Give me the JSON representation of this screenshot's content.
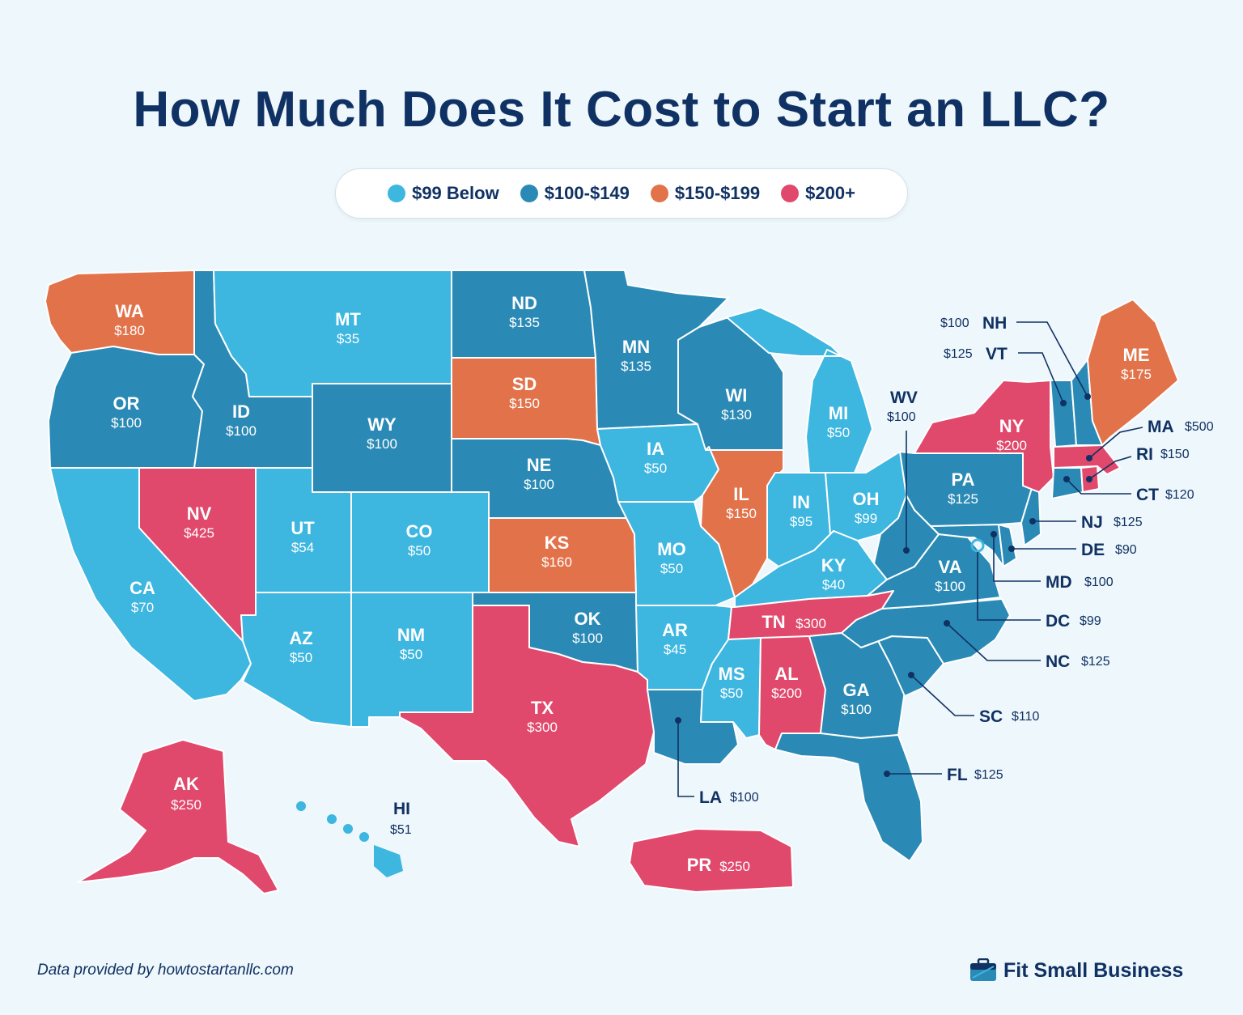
{
  "title": "How Much Does It Cost to Start an LLC?",
  "legend": [
    {
      "label": "$99 Below",
      "color": "#3db6e0"
    },
    {
      "label": "$100-$149",
      "color": "#2a8ab5"
    },
    {
      "label": "$150-$199",
      "color": "#e2724a"
    },
    {
      "label": "$200+",
      "color": "#e0486c"
    }
  ],
  "states": {
    "WA": {
      "abbr": "WA",
      "cost": "$180"
    },
    "OR": {
      "abbr": "OR",
      "cost": "$100"
    },
    "CA": {
      "abbr": "CA",
      "cost": "$70"
    },
    "NV": {
      "abbr": "NV",
      "cost": "$425"
    },
    "ID": {
      "abbr": "ID",
      "cost": "$100"
    },
    "MT": {
      "abbr": "MT",
      "cost": "$35"
    },
    "WY": {
      "abbr": "WY",
      "cost": "$100"
    },
    "UT": {
      "abbr": "UT",
      "cost": "$54"
    },
    "AZ": {
      "abbr": "AZ",
      "cost": "$50"
    },
    "CO": {
      "abbr": "CO",
      "cost": "$50"
    },
    "NM": {
      "abbr": "NM",
      "cost": "$50"
    },
    "ND": {
      "abbr": "ND",
      "cost": "$135"
    },
    "SD": {
      "abbr": "SD",
      "cost": "$150"
    },
    "NE": {
      "abbr": "NE",
      "cost": "$100"
    },
    "KS": {
      "abbr": "KS",
      "cost": "$160"
    },
    "OK": {
      "abbr": "OK",
      "cost": "$100"
    },
    "TX": {
      "abbr": "TX",
      "cost": "$300"
    },
    "MN": {
      "abbr": "MN",
      "cost": "$135"
    },
    "IA": {
      "abbr": "IA",
      "cost": "$50"
    },
    "MO": {
      "abbr": "MO",
      "cost": "$50"
    },
    "AR": {
      "abbr": "AR",
      "cost": "$45"
    },
    "LA": {
      "abbr": "LA",
      "cost": "$100"
    },
    "WI": {
      "abbr": "WI",
      "cost": "$130"
    },
    "IL": {
      "abbr": "IL",
      "cost": "$150"
    },
    "MI": {
      "abbr": "MI",
      "cost": "$50"
    },
    "IN": {
      "abbr": "IN",
      "cost": "$95"
    },
    "OH": {
      "abbr": "OH",
      "cost": "$99"
    },
    "KY": {
      "abbr": "KY",
      "cost": "$40"
    },
    "TN": {
      "abbr": "TN",
      "cost": "$300"
    },
    "MS": {
      "abbr": "MS",
      "cost": "$50"
    },
    "AL": {
      "abbr": "AL",
      "cost": "$200"
    },
    "GA": {
      "abbr": "GA",
      "cost": "$100"
    },
    "FL": {
      "abbr": "FL",
      "cost": "$125"
    },
    "SC": {
      "abbr": "SC",
      "cost": "$110"
    },
    "NC": {
      "abbr": "NC",
      "cost": "$125"
    },
    "VA": {
      "abbr": "VA",
      "cost": "$100"
    },
    "WV": {
      "abbr": "WV",
      "cost": "$100"
    },
    "PA": {
      "abbr": "PA",
      "cost": "$125"
    },
    "NY": {
      "abbr": "NY",
      "cost": "$200"
    },
    "ME": {
      "abbr": "ME",
      "cost": "$175"
    },
    "NH": {
      "abbr": "NH",
      "cost": "$100"
    },
    "VT": {
      "abbr": "VT",
      "cost": "$125"
    },
    "MA": {
      "abbr": "MA",
      "cost": "$500"
    },
    "RI": {
      "abbr": "RI",
      "cost": "$150"
    },
    "CT": {
      "abbr": "CT",
      "cost": "$120"
    },
    "NJ": {
      "abbr": "NJ",
      "cost": "$125"
    },
    "DE": {
      "abbr": "DE",
      "cost": "$90"
    },
    "MD": {
      "abbr": "MD",
      "cost": "$100"
    },
    "DC": {
      "abbr": "DC",
      "cost": "$99"
    },
    "AK": {
      "abbr": "AK",
      "cost": "$250"
    },
    "HI": {
      "abbr": "HI",
      "cost": "$51"
    },
    "PR": {
      "abbr": "PR",
      "cost": "$250"
    }
  },
  "footer": {
    "source": "Data provided by howtostartanllc.com",
    "brand": "Fit Small Business"
  },
  "icons": {
    "brand": "briefcase-icon"
  }
}
